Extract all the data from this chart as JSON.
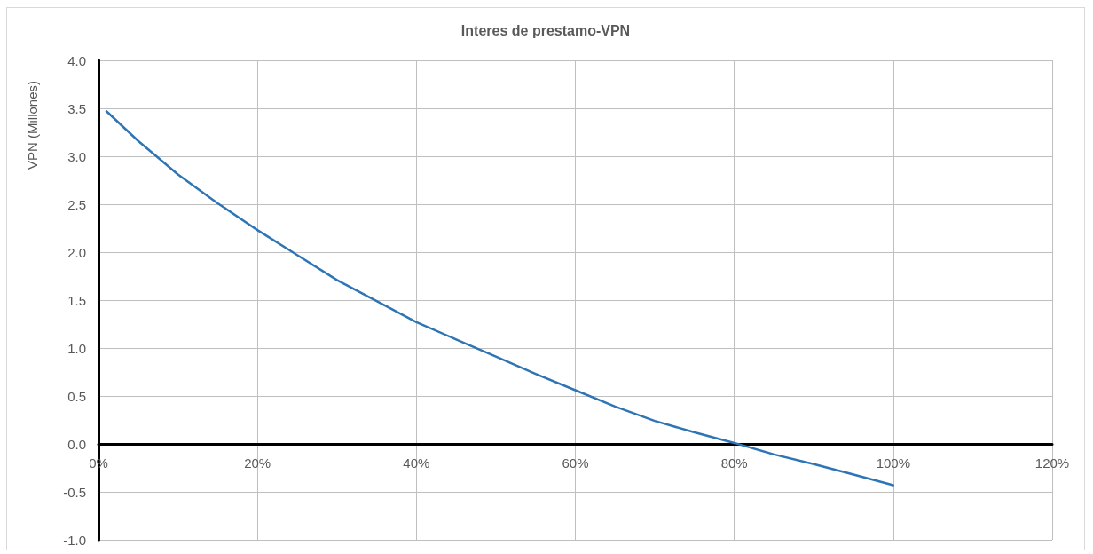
{
  "chart_data": {
    "type": "line",
    "title": "Interes de prestamo-VPN",
    "ylabel": "VPN (Millones)",
    "x": [
      1,
      5,
      10,
      15,
      20,
      25,
      30,
      35,
      40,
      45,
      50,
      55,
      60,
      65,
      70,
      75,
      80,
      85,
      90,
      95,
      100
    ],
    "series": [
      {
        "color": "#2e75b6",
        "values": [
          3.47,
          3.16,
          2.81,
          2.51,
          2.23,
          1.97,
          1.71,
          1.49,
          1.27,
          1.09,
          0.91,
          0.73,
          0.56,
          0.39,
          0.24,
          0.12,
          0.01,
          -0.11,
          -0.21,
          -0.32,
          -0.43
        ]
      }
    ],
    "xlim": [
      0,
      120
    ],
    "xticks": [
      {
        "value": 0,
        "label": "0%"
      },
      {
        "value": 20,
        "label": "20%"
      },
      {
        "value": 40,
        "label": "40%"
      },
      {
        "value": 60,
        "label": "60%"
      },
      {
        "value": 80,
        "label": "80%"
      },
      {
        "value": 100,
        "label": "100%"
      },
      {
        "value": 120,
        "label": "120%"
      }
    ],
    "ylim": [
      -1,
      4
    ],
    "yticks": [
      {
        "value": -1,
        "label": "-1.0"
      },
      {
        "value": -0.5,
        "label": "-0.5"
      },
      {
        "value": 0,
        "label": "0.0"
      },
      {
        "value": 0.5,
        "label": "0.5"
      },
      {
        "value": 1,
        "label": "1.0"
      },
      {
        "value": 1.5,
        "label": "1.5"
      },
      {
        "value": 2,
        "label": "2.0"
      },
      {
        "value": 2.5,
        "label": "2.5"
      },
      {
        "value": 3,
        "label": "3.0"
      },
      {
        "value": 3.5,
        "label": "3.5"
      },
      {
        "value": 4,
        "label": "4.0"
      }
    ],
    "grid": true,
    "marker": "none",
    "line_style": "solid"
  }
}
